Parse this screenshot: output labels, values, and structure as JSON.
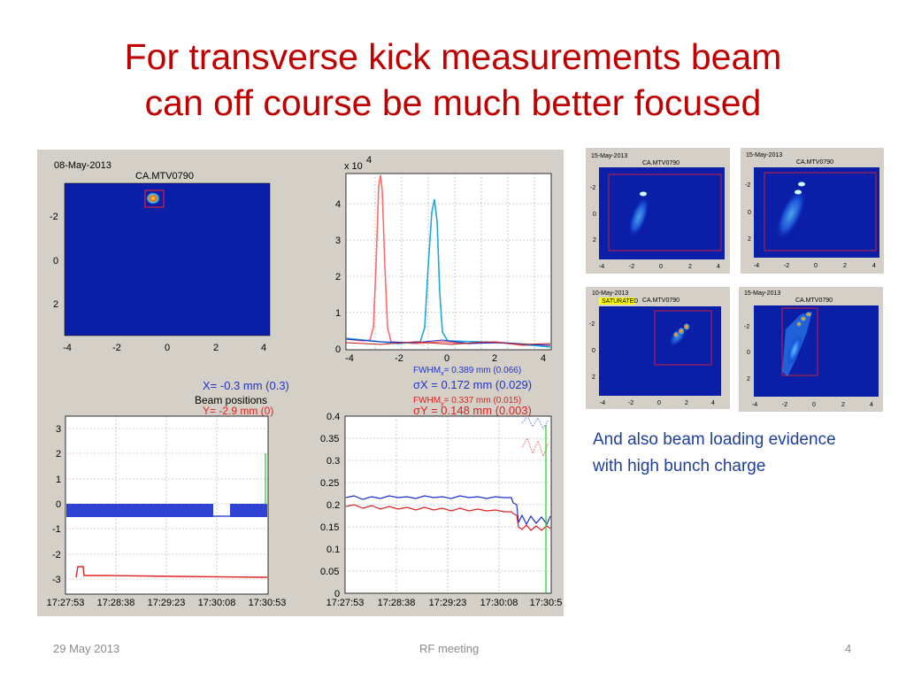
{
  "slide": {
    "title_line1": "For transverse kick measurements beam",
    "title_line2": "can off course be much better focused",
    "caption_line1": "And also beam loading evidence",
    "caption_line2": "with high bunch charge",
    "footer_date": "29 May 2013",
    "footer_center": "RF meeting",
    "footer_page": "4"
  },
  "main_figure": {
    "date": "08-May-2013",
    "camera": "CA.MTV0790",
    "image_yticks": [
      "-2",
      "0",
      "2"
    ],
    "image_xticks": [
      "-4",
      "-2",
      "0",
      "2",
      "4"
    ],
    "profile_exponent_base": "x 10",
    "profile_exponent": "4",
    "profile_yticks": [
      "0",
      "1",
      "2",
      "3",
      "4"
    ],
    "profile_xticks": [
      "-4",
      "-2",
      "0",
      "2",
      "4"
    ],
    "x_stat": "X= -0.3 mm  (0.3)",
    "y_stat": "Y= -2.9 mm  (0)",
    "beam_positions_label": "Beam positions",
    "fwhm_x": "FWHM",
    "fwhm_x_sub": "x",
    "fwhm_x_val": "= 0.389 mm  (0.066)",
    "sigma_x": "σX  = 0.172 mm  (0.029)",
    "fwhm_y": "FWHM",
    "fwhm_y_sub": "y",
    "fwhm_y_val": "= 0.337 mm  (0.015)",
    "sigma_y": "σY  = 0.148 mm  (0.003)",
    "pos_yticks": [
      "3",
      "2",
      "1",
      "0",
      "-1",
      "-2",
      "-3"
    ],
    "width_yticks": [
      "0.4",
      "0.35",
      "0.3",
      "0.25",
      "0.2",
      "0.15",
      "0.1",
      "0.05",
      "0"
    ],
    "time_ticks": [
      "17:27:53",
      "17:28:38",
      "17:29:23",
      "17:30:08",
      "17:30:53"
    ],
    "time_ticks_right": [
      "17:27:53",
      "17:28:38",
      "17:29:23",
      "17:30:08",
      "17:30:5"
    ]
  },
  "thumbnails": [
    {
      "date": "15-May-2013",
      "camera": "CA.MTV0790",
      "yticks": [
        "-2",
        "0",
        "2"
      ],
      "xticks": [
        "-4",
        "-2",
        "0",
        "2",
        "4"
      ]
    },
    {
      "date": "15-May-2013",
      "camera": "CA.MTV0790",
      "yticks": [
        "-2",
        "0",
        "2"
      ],
      "xticks": [
        "-4",
        "-2",
        "0",
        "2",
        "4"
      ]
    },
    {
      "date": "10-May-2013",
      "camera": "CA.MTV0790",
      "badge": "SATURATED",
      "yticks": [
        "-2",
        "0",
        "2"
      ],
      "xticks": [
        "-4",
        "-2",
        "0",
        "2",
        "4"
      ]
    },
    {
      "date": "15-May-2013",
      "camera": "CA.MTV0790",
      "yticks": [
        "-2",
        "0",
        "2"
      ],
      "xticks": [
        "-4",
        "-2",
        "0",
        "2",
        "4"
      ]
    }
  ],
  "colors": {
    "title": "#c00000",
    "caption": "#1f3f9a",
    "camera_bg": "#0a1ea8",
    "panel_bg": "#d4d0c8",
    "footer": "#8c8c8c"
  }
}
